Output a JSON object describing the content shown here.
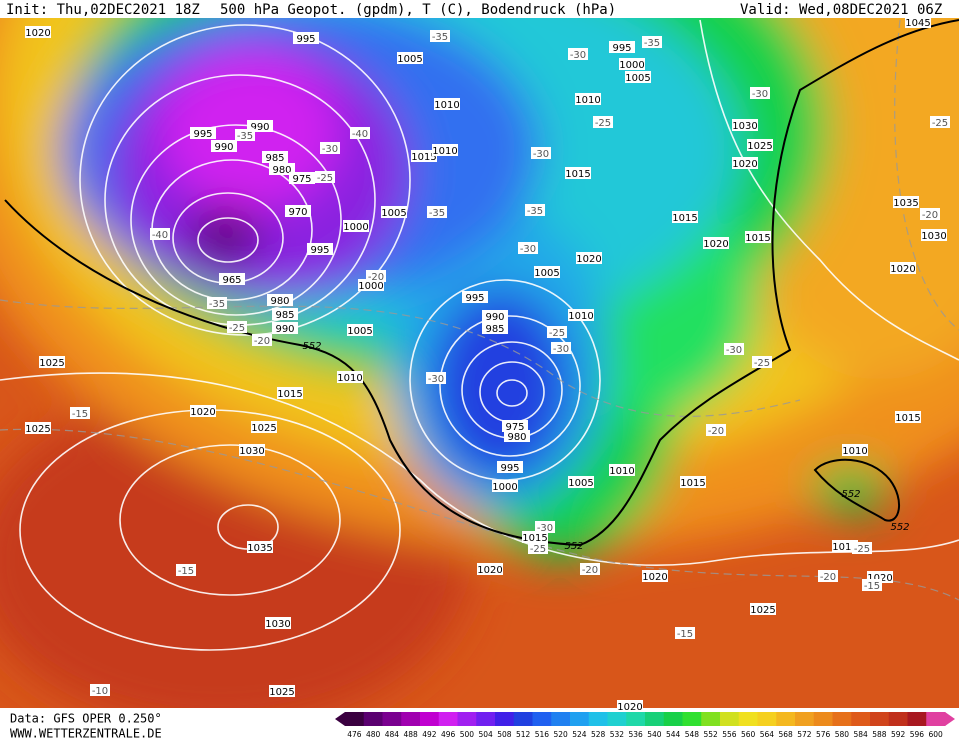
{
  "header": {
    "init": "Init: Thu,02DEC2021 18Z",
    "title": "500 hPa Geopot. (gpdm), T (C), Bodendruck (hPa)",
    "valid": "Valid: Wed,08DEC2021 06Z"
  },
  "footer": {
    "data_source": "Data: GFS OPER 0.250°",
    "website": "WWW.WETTERZENTRALE.DE"
  },
  "colorbar_labels": [
    "476",
    "480",
    "484",
    "488",
    "492",
    "496",
    "500",
    "504",
    "508",
    "512",
    "516",
    "520",
    "524",
    "528",
    "532",
    "536",
    "540",
    "544",
    "548",
    "552",
    "556",
    "560",
    "564",
    "568",
    "572",
    "576",
    "580",
    "584",
    "588",
    "592",
    "596",
    "600"
  ],
  "isobar_labels": [
    "1020",
    "995",
    "1005",
    "995",
    "1000",
    "1005",
    "1045",
    "1010",
    "1010",
    "990",
    "995",
    "990",
    "985",
    "980",
    "975",
    "1015",
    "1010",
    "1030",
    "1025",
    "1020",
    "1015",
    "970",
    "1005",
    "1000",
    "995",
    "965",
    "1015",
    "1035",
    "1030",
    "1020",
    "1015",
    "1020",
    "1005",
    "1000",
    "980",
    "985",
    "990",
    "995",
    "990",
    "985",
    "1020",
    "1010",
    "1005",
    "1025",
    "1010",
    "1015",
    "1020",
    "1025",
    "1025",
    "1030",
    "975",
    "980",
    "1015",
    "1010",
    "995",
    "1010",
    "1015",
    "1005",
    "1000",
    "1035",
    "1015",
    "1015",
    "1020",
    "1020",
    "1020",
    "1025",
    "1030",
    "1025",
    "1020"
  ],
  "temperature_labels": [
    "-35",
    "-30",
    "-35",
    "-30",
    "-25",
    "-25",
    "-40",
    "-35",
    "-30",
    "-25",
    "-30",
    "-35",
    "-35",
    "-40",
    "-20",
    "-30",
    "-20",
    "-35",
    "-25",
    "-20",
    "-25",
    "-30",
    "-30",
    "-25",
    "-30",
    "-15",
    "-20",
    "-30",
    "-25",
    "-20",
    "-15",
    "-20",
    "-15",
    "-15",
    "-10",
    "-25"
  ],
  "contour_552_labels": [
    "552",
    "552",
    "552",
    "552"
  ]
}
